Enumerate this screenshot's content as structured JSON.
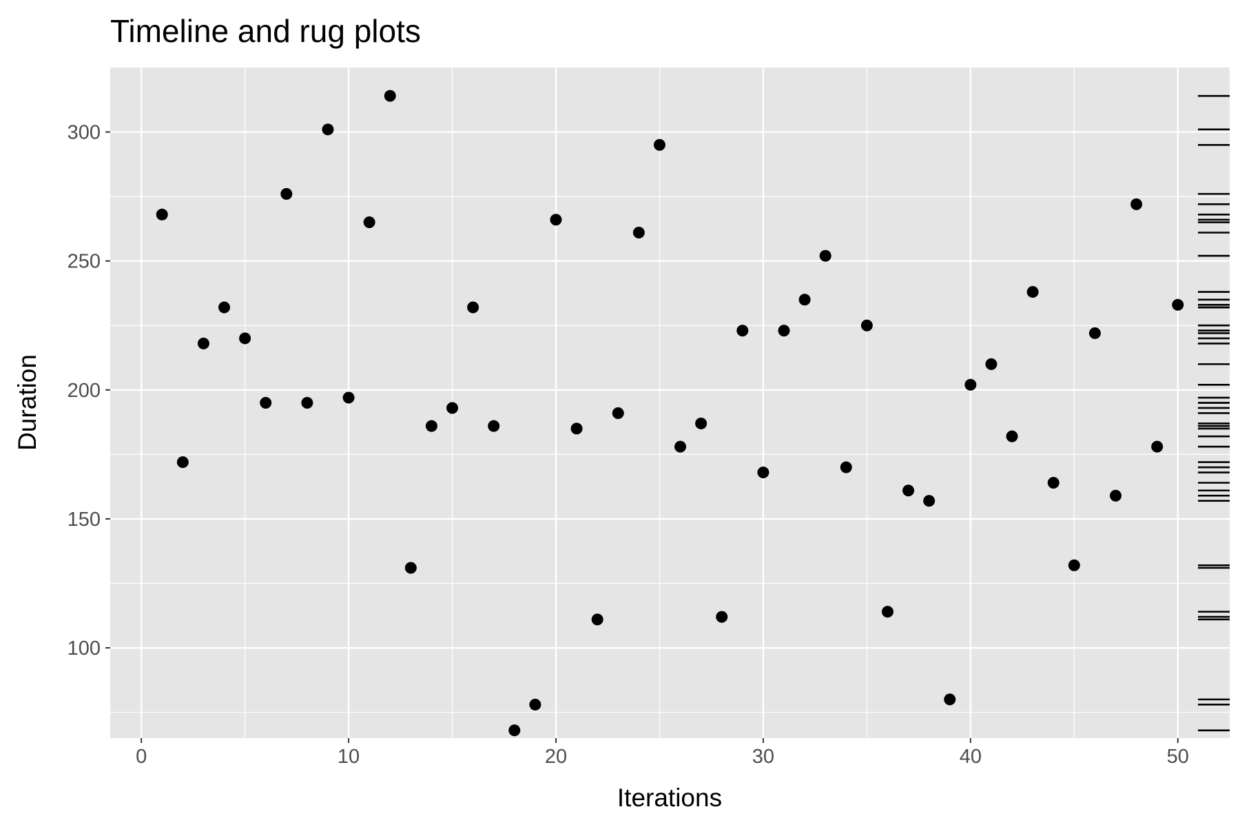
{
  "chart_data": {
    "type": "scatter",
    "title": "Timeline and rug plots",
    "xlabel": "Iterations",
    "ylabel": "Duration",
    "xlim": [
      -1.5,
      52.5
    ],
    "ylim": [
      65,
      325
    ],
    "xticks": [
      0,
      10,
      20,
      30,
      40,
      50
    ],
    "yticks": [
      100,
      150,
      200,
      250,
      300
    ],
    "xtick_labels": [
      "0",
      "10",
      "20",
      "30",
      "40",
      "50"
    ],
    "ytick_labels": [
      "100",
      "150",
      "200",
      "250",
      "300"
    ],
    "grid": true,
    "legend": "none",
    "background": "#e5e5e5",
    "grid_color": "#ffffff",
    "point_color": "#000000",
    "rug": {
      "side": "right",
      "variable": "y"
    },
    "series": [
      {
        "x": [
          1,
          2,
          3,
          4,
          5,
          6,
          7,
          8,
          9,
          10,
          11,
          12,
          13,
          14,
          15,
          16,
          17,
          18,
          19,
          20,
          21,
          22,
          23,
          24,
          25,
          26,
          27,
          28,
          29,
          30,
          31,
          32,
          33,
          34,
          35,
          36,
          37,
          38,
          39,
          40,
          41,
          42,
          43,
          44,
          45,
          46,
          47,
          48,
          49,
          50
        ],
        "y": [
          268,
          172,
          218,
          232,
          220,
          195,
          276,
          195,
          301,
          197,
          265,
          314,
          131,
          186,
          193,
          232,
          186,
          68,
          78,
          266,
          185,
          111,
          191,
          261,
          295,
          178,
          187,
          112,
          223,
          168,
          223,
          235,
          252,
          170,
          225,
          114,
          161,
          157,
          80,
          202,
          210,
          182,
          238,
          164,
          132,
          222,
          159,
          272,
          178,
          233
        ]
      }
    ]
  }
}
